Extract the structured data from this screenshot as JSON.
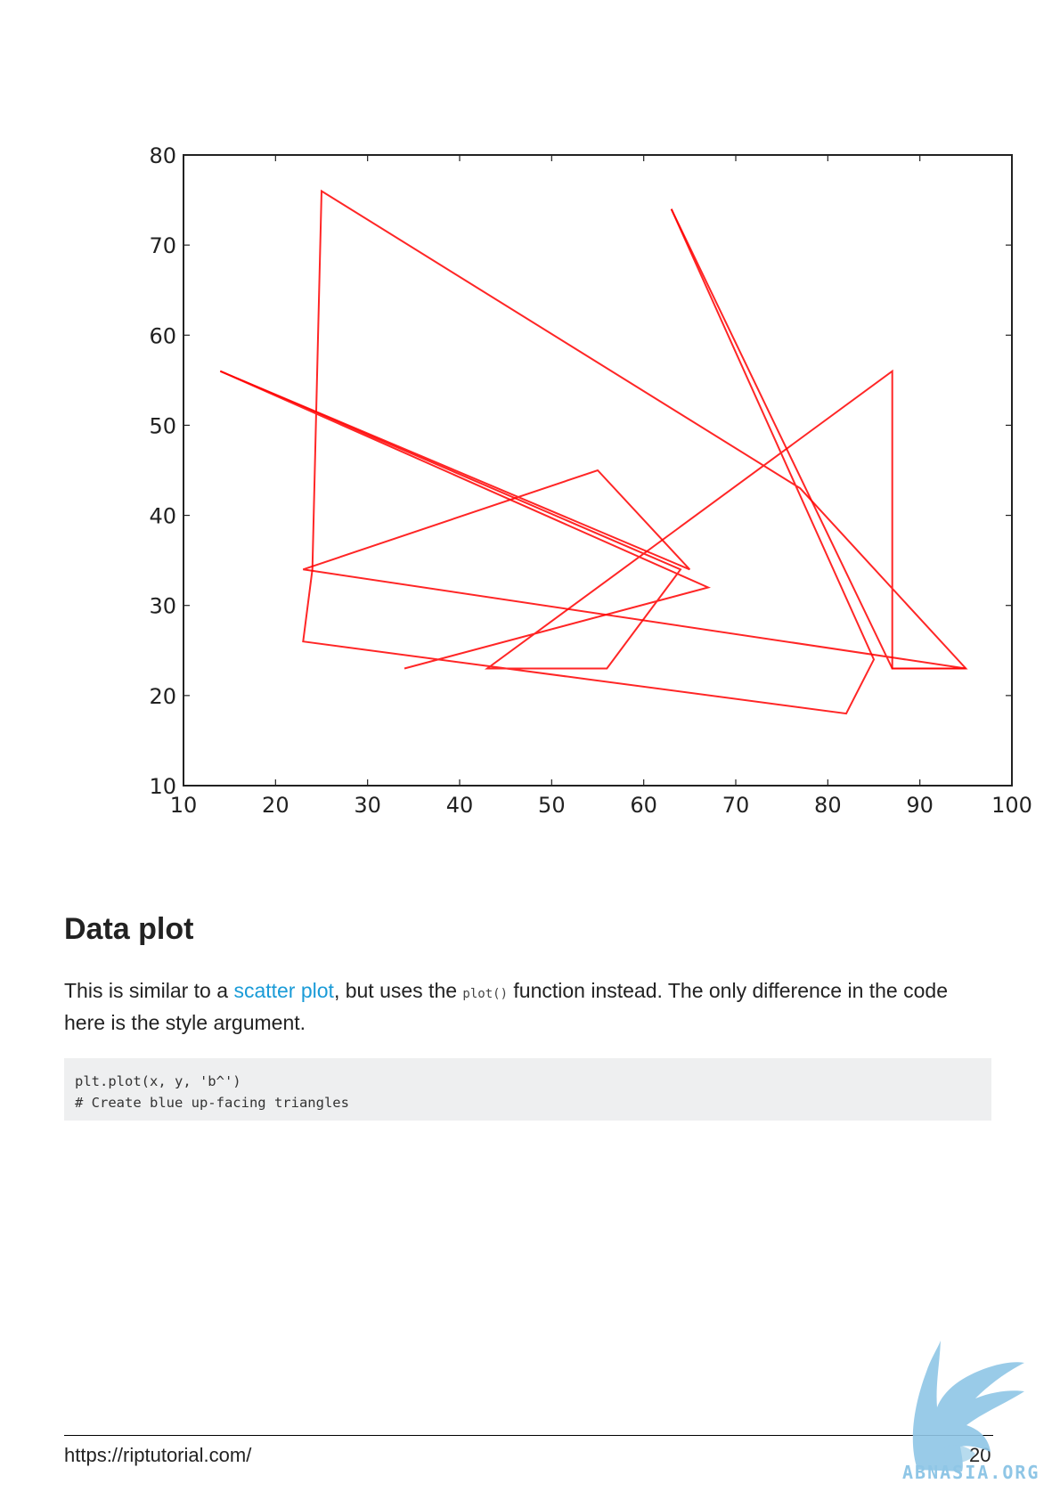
{
  "chart_data": {
    "type": "line",
    "xlim": [
      10,
      100
    ],
    "ylim": [
      10,
      80
    ],
    "xticks": [
      10,
      20,
      30,
      40,
      50,
      60,
      70,
      80,
      90,
      100
    ],
    "yticks": [
      10,
      20,
      30,
      40,
      50,
      60,
      70,
      80
    ],
    "grid": false,
    "line_color": "#ff0000",
    "series": [
      {
        "x": [
          63,
          85,
          82,
          23,
          24,
          25,
          77,
          95,
          87,
          87,
          43,
          56,
          64,
          14,
          67,
          34
        ],
        "y": [
          74,
          24,
          18,
          26,
          34,
          76,
          43,
          23,
          23,
          56,
          23,
          23,
          34,
          56,
          32,
          23
        ]
      },
      {
        "x": [
          14,
          65,
          55,
          23,
          95,
          87,
          63
        ],
        "y": [
          56,
          34,
          45,
          34,
          23,
          23,
          74
        ]
      }
    ]
  },
  "section": {
    "title": "Data plot",
    "para_before_link": "This is similar to a ",
    "link_text": "scatter plot",
    "para_mid": ", but uses the ",
    "inline_code": "plot()",
    "para_after": " function instead. The only difference in the code here is the style argument."
  },
  "code": {
    "line1": "plt.plot(x, y, 'b^')",
    "line2": "# Create blue up-facing triangles"
  },
  "footer": {
    "url": "https://riptutorial.com/",
    "page_number": "20"
  },
  "watermark": {
    "text": "ABNASIA.ORG",
    "icon": "griffin-logo-icon",
    "color": "#8fc6e6"
  }
}
